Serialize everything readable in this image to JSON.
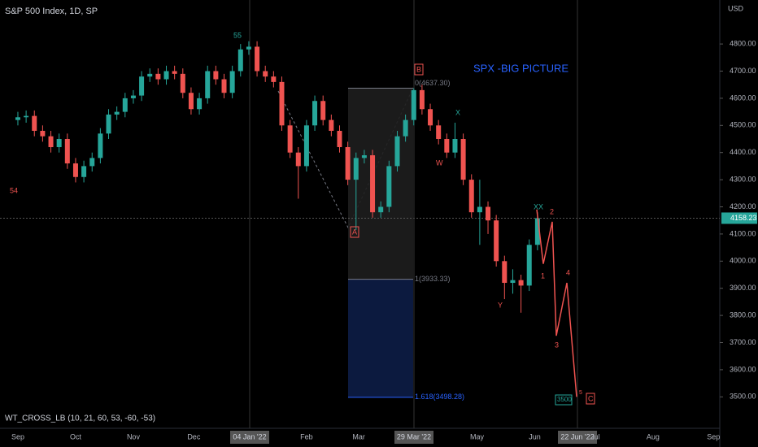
{
  "chart_data": {
    "type": "candlestick",
    "header": "S&P 500 Index, 1D, SP",
    "currency": "USD",
    "title": "SPX -BIG PICTURE",
    "indicator": "WT_CROSS_LB (10, 21, 60, 53, -60, -53)",
    "up_color": "#26a69a",
    "down_color": "#ef5350",
    "x": [
      0,
      3,
      6,
      9,
      12,
      15,
      18,
      21,
      24,
      27,
      30,
      33,
      36,
      39,
      42,
      45,
      48,
      51,
      54,
      57,
      60,
      63,
      66,
      69,
      72,
      75,
      78,
      81,
      84,
      87,
      90,
      93,
      96,
      99,
      102,
      105,
      108,
      111,
      114,
      117,
      120,
      123,
      126,
      129,
      132,
      135,
      138,
      141,
      144,
      147,
      150,
      153,
      156,
      159,
      162,
      165,
      168,
      171,
      174,
      177,
      180,
      183,
      186,
      189
    ],
    "open": [
      4520,
      4530,
      4535,
      4480,
      4460,
      4420,
      4450,
      4360,
      4310,
      4350,
      4380,
      4470,
      4540,
      4550,
      4600,
      4610,
      4680,
      4690,
      4670,
      4700,
      4690,
      4620,
      4560,
      4600,
      4700,
      4670,
      4620,
      4700,
      4780,
      4790,
      4700,
      4680,
      4660,
      4500,
      4400,
      4350,
      4500,
      4590,
      4520,
      4480,
      4420,
      4300,
      4380,
      4390,
      4180,
      4200,
      4350,
      4460,
      4520,
      4630,
      4560,
      4500,
      4450,
      4400,
      4450,
      4300,
      4180,
      4200,
      4150,
      4000,
      3920,
      3930,
      3910,
      4060
    ],
    "high": [
      4550,
      4555,
      4555,
      4500,
      4480,
      4470,
      4470,
      4380,
      4370,
      4400,
      4490,
      4560,
      4570,
      4620,
      4630,
      4700,
      4710,
      4710,
      4720,
      4720,
      4710,
      4640,
      4620,
      4720,
      4720,
      4690,
      4720,
      4800,
      4810,
      4810,
      4720,
      4700,
      4680,
      4520,
      4420,
      4520,
      4610,
      4610,
      4540,
      4500,
      4440,
      4400,
      4410,
      4410,
      4220,
      4370,
      4480,
      4540,
      4637,
      4650,
      4580,
      4520,
      4470,
      4510,
      4470,
      4320,
      4300,
      4220,
      4170,
      4020,
      3970,
      3950,
      4080,
      4180
    ],
    "low": [
      4500,
      4510,
      4460,
      4440,
      4400,
      4400,
      4340,
      4290,
      4290,
      4330,
      4360,
      4450,
      4520,
      4530,
      4580,
      4590,
      4660,
      4650,
      4650,
      4670,
      4600,
      4540,
      4540,
      4580,
      4650,
      4600,
      4600,
      4680,
      4760,
      4680,
      4660,
      4640,
      4480,
      4380,
      4230,
      4330,
      4480,
      4500,
      4460,
      4400,
      4280,
      4115,
      4360,
      4160,
      4160,
      4180,
      4330,
      4440,
      4500,
      4540,
      4480,
      4430,
      4380,
      4380,
      4280,
      4160,
      4060,
      4100,
      3980,
      3860,
      3880,
      3810,
      3890,
      4040
    ],
    "close": [
      4530,
      4535,
      4480,
      4460,
      4420,
      4450,
      4360,
      4310,
      4350,
      4380,
      4470,
      4540,
      4550,
      4600,
      4610,
      4680,
      4690,
      4670,
      4700,
      4690,
      4620,
      4560,
      4600,
      4700,
      4670,
      4620,
      4700,
      4780,
      4790,
      4700,
      4680,
      4660,
      4500,
      4400,
      4350,
      4500,
      4590,
      4520,
      4480,
      4420,
      4300,
      4380,
      4390,
      4180,
      4200,
      4350,
      4460,
      4520,
      4630,
      4560,
      4500,
      4450,
      4400,
      4450,
      4300,
      4180,
      4200,
      4150,
      4000,
      3920,
      3930,
      3910,
      4060,
      4158.23
    ],
    "last_price": 4158.23,
    "xlim": [
      -6.5,
      255.3
    ],
    "xticks": [
      {
        "value": 0,
        "label": "Sep"
      },
      {
        "value": 21,
        "label": "Oct"
      },
      {
        "value": 42,
        "label": "Nov"
      },
      {
        "value": 64,
        "label": "Dec"
      },
      {
        "value": 105,
        "label": "Feb"
      },
      {
        "value": 124,
        "label": "Mar"
      },
      {
        "value": 167,
        "label": "May"
      },
      {
        "value": 188,
        "label": "Jun"
      },
      {
        "value": 210,
        "label": "Jul"
      },
      {
        "value": 231,
        "label": "Aug"
      },
      {
        "value": 253,
        "label": "Sep"
      }
    ],
    "crosshair_dates": [
      "04 Jan '22",
      "29 Mar '22",
      "22 Jun '22"
    ],
    "ylim": [
      3450,
      4962
    ],
    "yticks": [
      {
        "value": 3500,
        "label": "3500.00"
      },
      {
        "value": 3600,
        "label": "3600.00"
      },
      {
        "value": 3700,
        "label": "3700.00"
      },
      {
        "value": 3800,
        "label": "3800.00"
      },
      {
        "value": 3900,
        "label": "3900.00"
      },
      {
        "value": 4000,
        "label": "4000.00"
      },
      {
        "value": 4100,
        "label": "4100.00"
      },
      {
        "value": 4200,
        "label": "4200.00"
      },
      {
        "value": 4300,
        "label": "4300.00"
      },
      {
        "value": 4400,
        "label": "4400.00"
      },
      {
        "value": 4500,
        "label": "4500.00"
      },
      {
        "value": 4600,
        "label": "4600.00"
      },
      {
        "value": 4700,
        "label": "4700.00"
      },
      {
        "value": 4800,
        "label": "4800.00"
      }
    ],
    "fib": {
      "top": 4637.3,
      "mid": 3933.33,
      "bottom": 3498.28,
      "labels": [
        "0(4637.30)",
        "1(3933.33)",
        "1.618(3498.28)"
      ]
    },
    "projection": [
      4190,
      3990,
      4145,
      3725,
      3920,
      3500
    ],
    "wave_labels": [
      "55",
      "54",
      "A",
      "B",
      "C",
      "X",
      "W",
      "Y",
      "XX",
      "1",
      "2",
      "3",
      "4",
      "5",
      "3500"
    ]
  }
}
